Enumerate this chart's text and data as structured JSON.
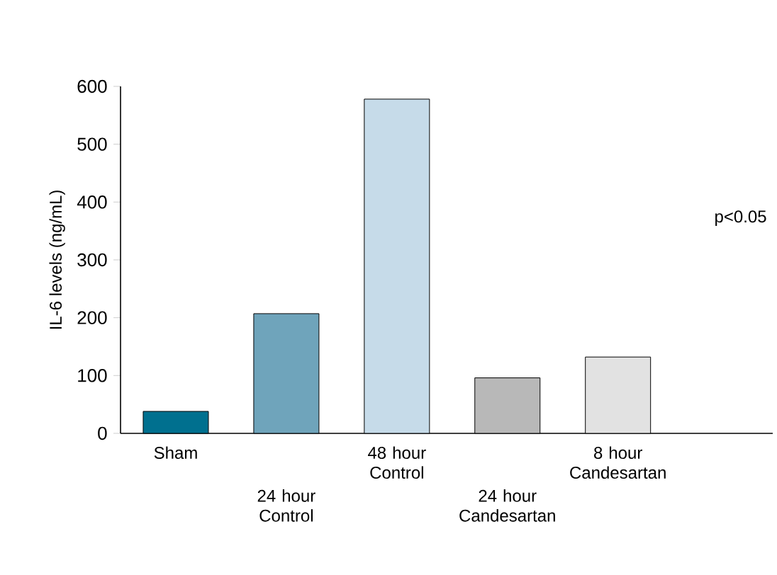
{
  "chart_data": {
    "type": "bar",
    "ylabel": "IL-6 levels (ng/mL)",
    "categories": [
      "Sham",
      "24 hour Control",
      "48 hour Control",
      "24 hour Candesartan",
      "8 hour Candesartan"
    ],
    "values": [
      38,
      207,
      578,
      96,
      132
    ],
    "colors": [
      "#00708f",
      "#6fa4bb",
      "#c6dbe9",
      "#b8b8b8",
      "#e2e2e2"
    ],
    "ylim": [
      0,
      600
    ],
    "yticks": [
      0,
      100,
      200,
      300,
      400,
      500,
      600
    ],
    "annotations": [
      "p<0.05"
    ]
  }
}
